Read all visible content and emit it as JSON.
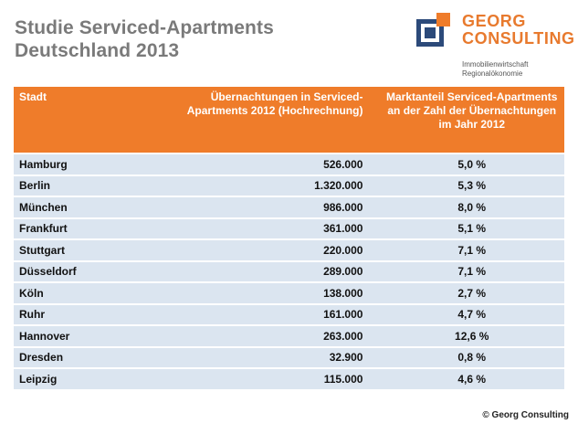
{
  "title_line1": "Studie Serviced-Apartments",
  "title_line2": "Deutschland 2013",
  "logo": {
    "name_line1": "GEORG",
    "name_line2": "CONSULTING",
    "sub_line1": "Immobilienwirtschaft",
    "sub_line2": "Regionalökonomie",
    "color_orange": "#ef7c2a",
    "color_navy": "#2c4a7a"
  },
  "table": {
    "headers": [
      "Stadt",
      "Übernachtungen in Serviced-Apartments 2012 (Hochrechnung)",
      "Marktanteil Serviced-Apartments an der Zahl der Übernachtungen im Jahr 2012"
    ],
    "rows": [
      [
        "Hamburg",
        "526.000",
        "5,0 %"
      ],
      [
        "Berlin",
        "1.320.000",
        "5,3 %"
      ],
      [
        "München",
        "986.000",
        "8,0 %"
      ],
      [
        "Frankfurt",
        "361.000",
        "5,1 %"
      ],
      [
        "Stuttgart",
        "220.000",
        "7,1 %"
      ],
      [
        "Düsseldorf",
        "289.000",
        "7,1 %"
      ],
      [
        "Köln",
        "138.000",
        "2,7 %"
      ],
      [
        "Ruhr",
        "161.000",
        "4,7 %"
      ],
      [
        "Hannover",
        "263.000",
        "12,6 %"
      ],
      [
        "Dresden",
        "32.900",
        "0,8 %"
      ],
      [
        "Leipzig",
        "115.000",
        "4,6 %"
      ]
    ]
  },
  "copyright": "© Georg Consulting"
}
